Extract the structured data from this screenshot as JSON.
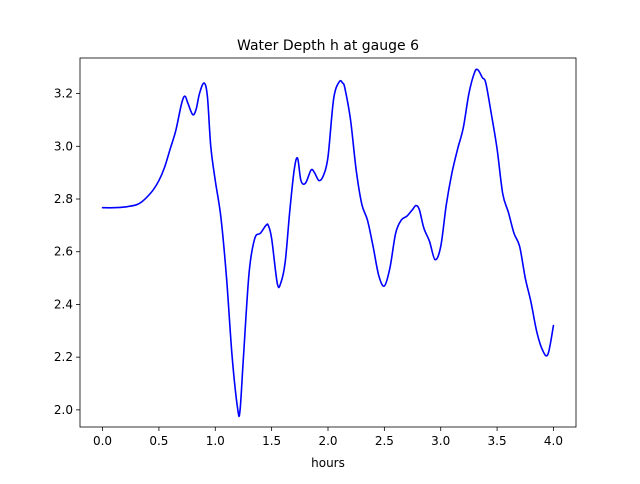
{
  "chart_data": {
    "type": "line",
    "title": "Water Depth h at gauge 6",
    "xlabel": "hours",
    "ylabel": "",
    "xlim": [
      -0.2,
      4.2
    ],
    "ylim": [
      1.935,
      3.335
    ],
    "xticks": [
      0.0,
      0.5,
      1.0,
      1.5,
      2.0,
      2.5,
      3.0,
      3.5,
      4.0
    ],
    "xtick_labels": [
      "0.0",
      "0.5",
      "1.0",
      "1.5",
      "2.0",
      "2.5",
      "3.0",
      "3.5",
      "4.0"
    ],
    "yticks": [
      2.0,
      2.2,
      2.4,
      2.6,
      2.8,
      3.0,
      3.2
    ],
    "ytick_labels": [
      "2.0",
      "2.2",
      "2.4",
      "2.6",
      "2.8",
      "3.0",
      "3.2"
    ],
    "grid": false,
    "colors": {
      "line": "#0000ff"
    },
    "series": [
      {
        "color": "#0000ff",
        "x": [
          0.0,
          0.1,
          0.2,
          0.3,
          0.35,
          0.4,
          0.45,
          0.5,
          0.55,
          0.6,
          0.65,
          0.7,
          0.73,
          0.76,
          0.8,
          0.83,
          0.86,
          0.9,
          0.93,
          0.96,
          1.0,
          1.05,
          1.1,
          1.15,
          1.2,
          1.22,
          1.25,
          1.3,
          1.35,
          1.4,
          1.45,
          1.47,
          1.5,
          1.55,
          1.58,
          1.62,
          1.66,
          1.7,
          1.73,
          1.76,
          1.8,
          1.85,
          1.88,
          1.92,
          1.96,
          2.0,
          2.05,
          2.1,
          2.13,
          2.15,
          2.2,
          2.25,
          2.3,
          2.35,
          2.4,
          2.45,
          2.5,
          2.55,
          2.6,
          2.65,
          2.7,
          2.75,
          2.78,
          2.81,
          2.85,
          2.9,
          2.95,
          3.0,
          3.05,
          3.1,
          3.15,
          3.2,
          3.25,
          3.3,
          3.33,
          3.37,
          3.4,
          3.45,
          3.5,
          3.55,
          3.6,
          3.65,
          3.7,
          3.75,
          3.8,
          3.85,
          3.9,
          3.95,
          4.0
        ],
        "y": [
          2.767,
          2.767,
          2.77,
          2.778,
          2.79,
          2.81,
          2.835,
          2.87,
          2.92,
          2.99,
          3.06,
          3.16,
          3.19,
          3.16,
          3.12,
          3.14,
          3.2,
          3.24,
          3.19,
          3.0,
          2.87,
          2.73,
          2.5,
          2.2,
          2.0,
          2.0,
          2.2,
          2.52,
          2.65,
          2.67,
          2.7,
          2.7,
          2.65,
          2.48,
          2.48,
          2.56,
          2.75,
          2.91,
          2.955,
          2.87,
          2.86,
          2.91,
          2.9,
          2.87,
          2.89,
          2.96,
          3.18,
          3.245,
          3.24,
          3.22,
          3.1,
          2.91,
          2.78,
          2.72,
          2.62,
          2.51,
          2.47,
          2.54,
          2.67,
          2.72,
          2.735,
          2.76,
          2.775,
          2.76,
          2.69,
          2.64,
          2.57,
          2.62,
          2.78,
          2.9,
          2.99,
          3.07,
          3.2,
          3.28,
          3.29,
          3.26,
          3.24,
          3.12,
          2.99,
          2.82,
          2.75,
          2.67,
          2.62,
          2.5,
          2.41,
          2.3,
          2.23,
          2.21,
          2.32
        ]
      }
    ]
  }
}
